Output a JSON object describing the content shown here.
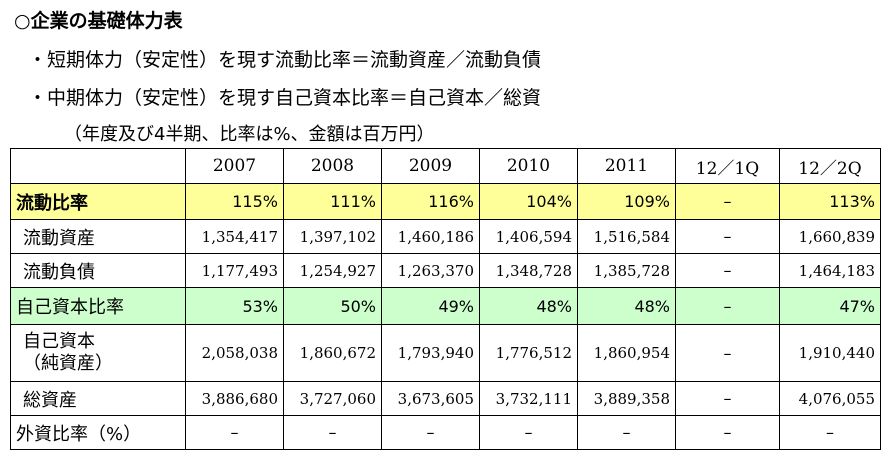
{
  "heading": "○企業の基礎体力表",
  "bullets": [
    "・短期体力（安定性）を現す流動比率＝流動資産／流動負債",
    "・中期体力（安定性）を現す自己資本比率＝自己資本／総資"
  ],
  "note": "（年度及び4半期、比率は%、金額は百万円）",
  "table": {
    "columns": [
      "2007",
      "2008",
      "2009",
      "2010",
      "2011",
      "12／1Q",
      "12／2Q"
    ],
    "rows": [
      {
        "label": "流動比率",
        "values": [
          "115%",
          "111%",
          "116%",
          "104%",
          "109%",
          "–",
          "113%"
        ]
      },
      {
        "label": "流動資産",
        "values": [
          "1,354,417",
          "1,397,102",
          "1,460,186",
          "1,406,594",
          "1,516,584",
          "–",
          "1,660,839"
        ]
      },
      {
        "label": "流動負債",
        "values": [
          "1,177,493",
          "1,254,927",
          "1,263,370",
          "1,348,728",
          "1,385,728",
          "–",
          "1,464,183"
        ]
      },
      {
        "label": "自己資本比率",
        "values": [
          "53%",
          "50%",
          "49%",
          "48%",
          "48%",
          "–",
          "47%"
        ]
      },
      {
        "label_line1": "自己資本",
        "label_line2": "（純資産）",
        "values": [
          "2,058,038",
          "1,860,672",
          "1,793,940",
          "1,776,512",
          "1,860,954",
          "–",
          "1,910,440"
        ]
      },
      {
        "label": "総資産",
        "values": [
          "3,886,680",
          "3,727,060",
          "3,673,605",
          "3,732,111",
          "3,889,358",
          "–",
          "4,076,055"
        ]
      },
      {
        "label": "外資比率（%）",
        "values": [
          "–",
          "–",
          "–",
          "–",
          "–",
          "–",
          "–"
        ]
      }
    ]
  },
  "colors": {
    "current_ratio_row": "#ffff99",
    "equity_ratio_row": "#ccffcc"
  }
}
